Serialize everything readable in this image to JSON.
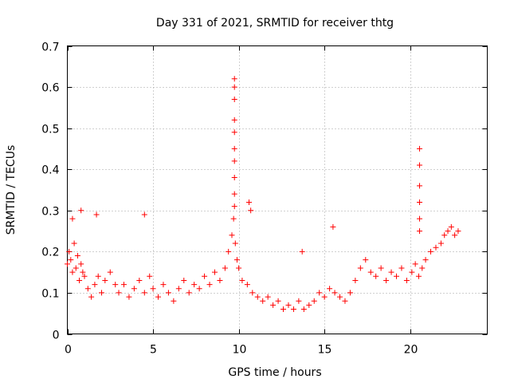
{
  "chart_data": {
    "type": "scatter",
    "title": "Day 331 of 2021, SRMTID for receiver thtg",
    "xlabel": "GPS time / hours",
    "ylabel": "SRMTID / TECUs",
    "xlim": [
      0,
      24.5
    ],
    "ylim": [
      0,
      0.7
    ],
    "x_ticks": [
      0,
      5,
      10,
      15,
      20
    ],
    "y_ticks": [
      0,
      0.1,
      0.2,
      0.3,
      0.4,
      0.5,
      0.6,
      0.7
    ],
    "grid": true,
    "marker": "+",
    "series": [
      {
        "name": "SRMTID",
        "color": "#ff0000",
        "x": [
          0.0,
          0.1,
          0.2,
          0.3,
          0.4,
          0.5,
          0.6,
          0.7,
          0.8,
          0.9,
          1.0,
          1.2,
          1.4,
          1.6,
          1.8,
          2.0,
          2.2,
          2.5,
          2.8,
          3.0,
          3.3,
          3.6,
          3.9,
          4.2,
          4.5,
          4.8,
          5.0,
          5.3,
          5.6,
          5.9,
          6.2,
          6.5,
          6.8,
          7.1,
          7.4,
          7.7,
          8.0,
          8.3,
          8.6,
          8.9,
          9.2,
          9.4,
          9.6,
          9.7,
          9.8,
          9.9,
          10.0,
          10.2,
          10.5,
          10.8,
          11.1,
          11.4,
          11.7,
          12.0,
          12.3,
          12.6,
          12.9,
          13.2,
          13.5,
          13.8,
          14.1,
          14.4,
          14.7,
          15.0,
          15.3,
          15.6,
          15.9,
          16.2,
          16.5,
          16.8,
          17.1,
          17.4,
          17.7,
          18.0,
          18.3,
          18.6,
          18.9,
          19.2,
          19.5,
          19.8,
          20.1,
          20.3,
          20.5,
          20.7,
          20.9,
          21.2,
          21.5,
          21.8,
          22.0,
          22.2,
          22.4,
          22.6,
          22.8,
          0.3,
          0.8,
          1.7,
          4.5,
          9.75,
          9.75,
          9.75,
          9.75,
          9.75,
          9.75,
          9.75,
          9.75,
          9.75,
          9.75,
          10.6,
          10.7,
          13.7,
          15.5,
          20.55,
          20.55,
          20.55,
          20.55,
          20.55,
          20.55
        ],
        "y": [
          0.17,
          0.2,
          0.18,
          0.15,
          0.22,
          0.16,
          0.19,
          0.13,
          0.17,
          0.15,
          0.14,
          0.11,
          0.09,
          0.12,
          0.14,
          0.1,
          0.13,
          0.15,
          0.12,
          0.1,
          0.12,
          0.09,
          0.11,
          0.13,
          0.1,
          0.14,
          0.11,
          0.09,
          0.12,
          0.1,
          0.08,
          0.11,
          0.13,
          0.1,
          0.12,
          0.11,
          0.14,
          0.12,
          0.15,
          0.13,
          0.16,
          0.2,
          0.24,
          0.28,
          0.22,
          0.18,
          0.16,
          0.13,
          0.12,
          0.1,
          0.09,
          0.08,
          0.09,
          0.07,
          0.08,
          0.06,
          0.07,
          0.06,
          0.08,
          0.06,
          0.07,
          0.08,
          0.1,
          0.09,
          0.11,
          0.1,
          0.09,
          0.08,
          0.1,
          0.13,
          0.16,
          0.18,
          0.15,
          0.14,
          0.16,
          0.13,
          0.15,
          0.14,
          0.16,
          0.13,
          0.15,
          0.17,
          0.14,
          0.16,
          0.18,
          0.2,
          0.21,
          0.22,
          0.24,
          0.25,
          0.26,
          0.24,
          0.25,
          0.28,
          0.3,
          0.29,
          0.29,
          0.6,
          0.62,
          0.57,
          0.52,
          0.49,
          0.45,
          0.42,
          0.38,
          0.34,
          0.31,
          0.32,
          0.3,
          0.2,
          0.26,
          0.45,
          0.41,
          0.36,
          0.32,
          0.28,
          0.25
        ]
      }
    ]
  }
}
